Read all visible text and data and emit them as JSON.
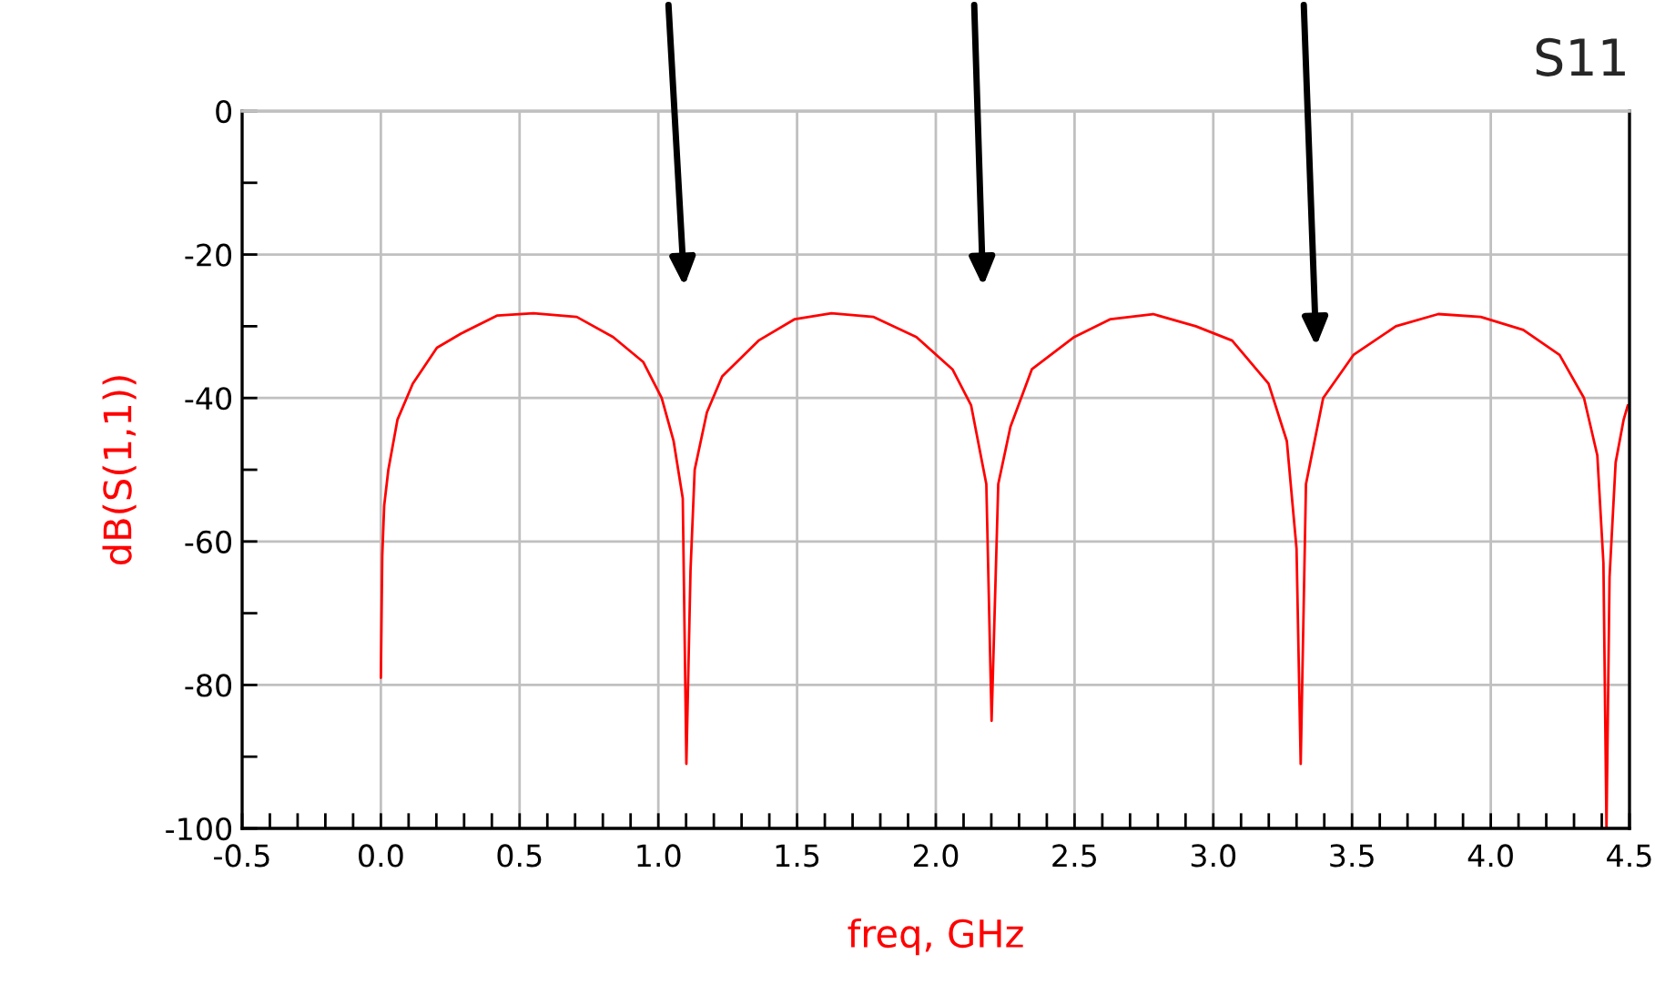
{
  "chart_data": {
    "type": "line",
    "title": "S11",
    "xlabel": "freq, GHz",
    "ylabel": "dB(S(1,1))",
    "xlim": [
      -0.5,
      4.5
    ],
    "ylim": [
      -100,
      0
    ],
    "xticks": [
      -0.5,
      {
        "value": -0.4,
        "label": null
      },
      {
        "value": -0.3,
        "label": null
      },
      {
        "value": -0.2,
        "label": null
      },
      {
        "value": -0.1,
        "label": null
      },
      {
        "value": 0,
        "label": "0.0"
      },
      {
        "value": 0.1,
        "label": null
      },
      {
        "value": 0.2,
        "label": null
      },
      {
        "value": 0.3,
        "label": null
      },
      {
        "value": 0.4,
        "label": null
      },
      0.5,
      {
        "value": 0.6,
        "label": null
      },
      {
        "value": 0.7,
        "label": null
      },
      {
        "value": 0.8,
        "label": null
      },
      {
        "value": 0.9,
        "label": null
      },
      {
        "value": 1,
        "label": "1.0"
      },
      {
        "value": 1.1,
        "label": null
      },
      {
        "value": 1.2,
        "label": null
      },
      {
        "value": 1.3,
        "label": null
      },
      {
        "value": 1.4,
        "label": null
      },
      1.5,
      {
        "value": 1.6,
        "label": null
      },
      {
        "value": 1.7,
        "label": null
      },
      {
        "value": 1.8,
        "label": null
      },
      {
        "value": 1.9,
        "label": null
      },
      {
        "value": 2,
        "label": "2.0"
      },
      {
        "value": 2.1,
        "label": null
      },
      {
        "value": 2.2,
        "label": null
      },
      {
        "value": 2.3,
        "label": null
      },
      {
        "value": 2.4,
        "label": null
      },
      2.5,
      {
        "value": 2.6,
        "label": null
      },
      {
        "value": 2.7,
        "label": null
      },
      {
        "value": 2.8,
        "label": null
      },
      {
        "value": 2.9,
        "label": null
      },
      {
        "value": 3,
        "label": "3.0"
      },
      {
        "value": 3.1,
        "label": null
      },
      {
        "value": 3.2,
        "label": null
      },
      {
        "value": 3.3,
        "label": null
      },
      {
        "value": 3.4,
        "label": null
      },
      3.5,
      {
        "value": 3.6,
        "label": null
      },
      {
        "value": 3.7,
        "label": null
      },
      {
        "value": 3.8,
        "label": null
      },
      {
        "value": 3.9,
        "label": null
      },
      {
        "value": 4,
        "label": "4.0"
      },
      {
        "value": 4.1,
        "label": null
      },
      {
        "value": 4.2,
        "label": null
      },
      {
        "value": 4.3,
        "label": null
      },
      {
        "value": 4.4,
        "label": null
      },
      4.5
    ],
    "yticks": [
      -100,
      {
        "value": -90,
        "label": null
      },
      -80,
      {
        "value": -70,
        "label": null
      },
      -60,
      {
        "value": -50,
        "label": null
      },
      -40,
      {
        "value": -30,
        "label": null
      },
      -20,
      {
        "value": -10,
        "label": null
      },
      0
    ],
    "grid": true,
    "marker": "none",
    "line_style": "solid",
    "series": [
      {
        "color": "#ff0000",
        "x": [
          0.0,
          0.005,
          0.012,
          0.027,
          0.06,
          0.115,
          0.202,
          0.29,
          0.42,
          0.55,
          0.706,
          0.837,
          0.946,
          1.012,
          1.055,
          1.088,
          1.101,
          1.116,
          1.131,
          1.175,
          1.23,
          1.361,
          1.492,
          1.624,
          1.776,
          1.93,
          2.06,
          2.127,
          2.182,
          2.201,
          2.225,
          2.269,
          2.346,
          2.499,
          2.63,
          2.783,
          2.937,
          3.068,
          3.199,
          3.265,
          3.3,
          3.315,
          3.334,
          3.396,
          3.505,
          3.658,
          3.811,
          3.964,
          4.117,
          4.248,
          4.336,
          4.384,
          4.406,
          4.417,
          4.428,
          4.45,
          4.479,
          4.494
        ],
        "values": [
          -79,
          -62,
          -55,
          -50,
          -43,
          -38,
          -33,
          -31,
          -28.5,
          -28.2,
          -28.7,
          -31.5,
          -35,
          -40,
          -46,
          -54,
          -91,
          -64,
          -50,
          -42,
          -37,
          -32,
          -29,
          -28.2,
          -28.7,
          -31.5,
          -36,
          -41,
          -52,
          -85,
          -52,
          -44,
          -36,
          -31.5,
          -29,
          -28.3,
          -30,
          -32,
          -38,
          -46,
          -61,
          -91,
          -52,
          -40,
          -34,
          -30,
          -28.3,
          -28.7,
          -30.5,
          -34,
          -40,
          -48,
          -63,
          -100,
          -65,
          -49,
          -43,
          -41
        ]
      }
    ]
  }
}
